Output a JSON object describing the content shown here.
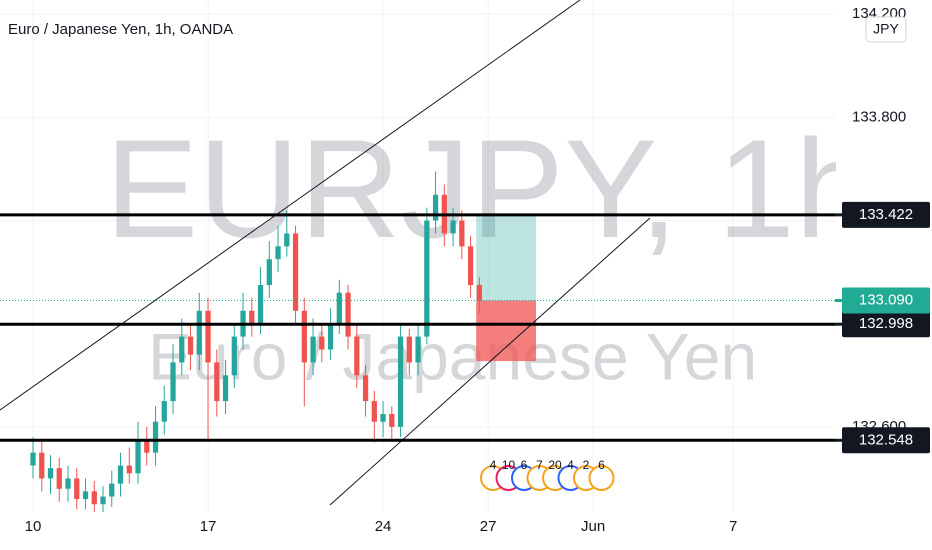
{
  "chart_data": {
    "type": "candlestick",
    "title": "Euro / Japanese Yen, 1h, OANDA",
    "watermark_symbol": "EURJPY, 1h",
    "watermark_name": "Euro / Japanese Yen",
    "currency_button": "JPY",
    "up_color": "#26a69a",
    "down_color": "#ef5350",
    "xlim": [
      -0.943,
      22.91
    ],
    "xticks": [
      {
        "value": 0,
        "label": "10"
      },
      {
        "value": 5,
        "label": "17"
      },
      {
        "value": 10,
        "label": "24"
      },
      {
        "value": 13,
        "label": "27"
      },
      {
        "value": 16,
        "label": "Jun"
      },
      {
        "value": 20,
        "label": "7"
      }
    ],
    "ylim": [
      132.27,
      134.255
    ],
    "yticks": [
      {
        "value": 132.6,
        "label": "132.600"
      },
      {
        "value": 133.0,
        "label": "133.000"
      },
      {
        "value": 133.4,
        "label": "133.400"
      },
      {
        "value": 133.8,
        "label": "133.800"
      },
      {
        "value": 134.2,
        "label": "134.200"
      }
    ],
    "candles": {
      "x": [
        0,
        0.25,
        0.5,
        0.75,
        1,
        1.25,
        1.5,
        1.75,
        2,
        2.25,
        2.5,
        2.75,
        3,
        3.25,
        3.5,
        3.75,
        4,
        4.25,
        4.5,
        4.75,
        5,
        5.25,
        5.5,
        5.75,
        6,
        6.25,
        6.5,
        6.75,
        7,
        7.25,
        7.5,
        7.75,
        8,
        8.25,
        8.5,
        8.75,
        9,
        9.25,
        9.5,
        9.75,
        10,
        10.25,
        10.5,
        10.75,
        11,
        11.25,
        11.5,
        11.75,
        12,
        12.25,
        12.5,
        12.75
      ],
      "open": [
        132.45,
        132.5,
        132.4,
        132.44,
        132.36,
        132.4,
        132.32,
        132.35,
        132.3,
        132.33,
        132.38,
        132.45,
        132.42,
        132.55,
        132.5,
        132.62,
        132.7,
        132.85,
        132.95,
        132.88,
        133.05,
        132.85,
        132.7,
        132.8,
        132.95,
        133.05,
        133.0,
        133.15,
        133.25,
        133.3,
        133.35,
        133.05,
        132.85,
        132.95,
        132.9,
        133.0,
        133.12,
        132.95,
        132.8,
        132.7,
        132.62,
        132.65,
        132.6,
        132.95,
        132.85,
        132.95,
        133.4,
        133.5,
        133.35,
        133.4,
        133.3,
        133.15
      ],
      "high": [
        132.56,
        132.55,
        132.49,
        132.48,
        132.45,
        132.44,
        132.4,
        132.39,
        132.37,
        132.43,
        132.5,
        132.52,
        132.62,
        132.6,
        132.68,
        132.76,
        132.92,
        133.02,
        133.0,
        133.12,
        133.1,
        132.9,
        132.86,
        133.0,
        133.12,
        133.1,
        133.22,
        133.32,
        133.38,
        133.44,
        133.38,
        133.1,
        133.02,
        133.0,
        133.06,
        133.17,
        133.15,
        133.0,
        132.84,
        132.74,
        132.7,
        132.68,
        133.0,
        132.98,
        133.0,
        133.45,
        133.59,
        133.54,
        133.45,
        133.44,
        133.34,
        133.18
      ],
      "low": [
        132.4,
        132.35,
        132.34,
        132.31,
        132.31,
        132.28,
        132.28,
        132.27,
        132.27,
        132.29,
        132.33,
        132.38,
        132.38,
        132.45,
        132.45,
        132.57,
        132.65,
        132.8,
        132.82,
        132.82,
        132.55,
        132.64,
        132.65,
        132.75,
        132.9,
        132.95,
        132.96,
        133.1,
        133.2,
        133.26,
        133.0,
        132.68,
        132.8,
        132.85,
        132.86,
        132.96,
        132.9,
        132.75,
        132.64,
        132.54,
        132.56,
        132.55,
        132.56,
        132.8,
        132.8,
        132.92,
        133.35,
        133.3,
        133.3,
        133.25,
        133.1,
        133.04
      ],
      "close": [
        132.5,
        132.4,
        132.44,
        132.36,
        132.4,
        132.32,
        132.35,
        132.3,
        132.33,
        132.38,
        132.45,
        132.42,
        132.55,
        132.5,
        132.62,
        132.7,
        132.85,
        132.95,
        132.88,
        133.05,
        132.85,
        132.7,
        132.8,
        132.95,
        133.05,
        133.0,
        133.15,
        133.25,
        133.3,
        133.35,
        133.05,
        132.85,
        132.95,
        132.9,
        133.0,
        133.12,
        132.95,
        132.8,
        132.7,
        132.62,
        132.65,
        132.6,
        132.95,
        132.85,
        132.95,
        133.4,
        133.5,
        133.35,
        133.4,
        133.3,
        133.15,
        133.09
      ]
    },
    "levels": [
      {
        "value": 133.422,
        "label": "133.422"
      },
      {
        "value": 132.998,
        "label": "132.998"
      },
      {
        "value": 132.548,
        "label": "132.548"
      }
    ],
    "last_price": {
      "value": 133.09,
      "label": "133.090"
    },
    "position": {
      "x": [
        12.66,
        14.37
      ],
      "target": 133.422,
      "entry": 133.09,
      "stop": 132.855
    },
    "events": [
      "4",
      "10",
      "6",
      "7",
      "20",
      "4",
      "2",
      "6"
    ]
  }
}
